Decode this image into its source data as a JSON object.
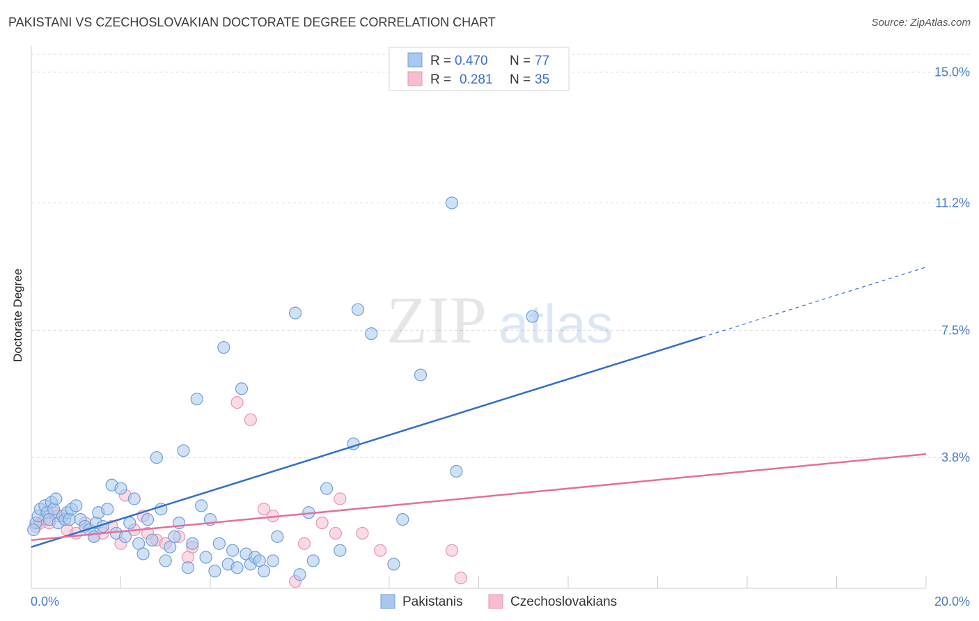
{
  "title": "PAKISTANI VS CZECHOSLOVAKIAN DOCTORATE DEGREE CORRELATION CHART",
  "source": "Source: ZipAtlas.com",
  "watermark": {
    "zip": "ZIP",
    "atlas": "atlas"
  },
  "colors": {
    "blue_fill": "#a9c8ef",
    "blue_stroke": "#6f9fd8",
    "blue_line": "#2f6fcc",
    "pink_fill": "#f6bcd0",
    "pink_stroke": "#e596b3",
    "pink_line": "#e46f9a",
    "tick_text": "#4a7cc8",
    "grid": "#d9d9d9"
  },
  "legend": {
    "rows": [
      {
        "r_label": "R =",
        "r_value": "0.470",
        "n_label": "N =",
        "n_value": "77"
      },
      {
        "r_label": "R =",
        "r_value": "0.281",
        "n_label": "N =",
        "n_value": "35"
      }
    ]
  },
  "chart_data": {
    "type": "scatter",
    "title": "PAKISTANI VS CZECHOSLOVAKIAN DOCTORATE DEGREE CORRELATION CHART",
    "xlabel": "",
    "ylabel": "Doctorate Degree",
    "xlim": [
      0,
      20
    ],
    "ylim": [
      0,
      15.6
    ],
    "x_tick_labels": [
      "0.0%",
      "20.0%"
    ],
    "y_ticks": [
      3.8,
      7.5,
      11.2,
      15.0
    ],
    "y_tick_labels": [
      "3.8%",
      "7.5%",
      "11.2%",
      "15.0%"
    ],
    "grid": "horizontal dashed",
    "legend_position": "top-center",
    "series": [
      {
        "name": "Pakistanis",
        "color": "#a9c8ef",
        "points": [
          [
            0.1,
            1.9
          ],
          [
            0.15,
            2.1
          ],
          [
            0.2,
            2.3
          ],
          [
            0.3,
            2.4
          ],
          [
            0.35,
            2.2
          ],
          [
            0.4,
            2.0
          ],
          [
            0.45,
            2.5
          ],
          [
            0.5,
            2.3
          ],
          [
            0.55,
            2.6
          ],
          [
            0.6,
            1.9
          ],
          [
            0.7,
            2.1
          ],
          [
            0.75,
            2.0
          ],
          [
            0.8,
            2.2
          ],
          [
            0.85,
            2.0
          ],
          [
            0.9,
            2.3
          ],
          [
            1.0,
            2.4
          ],
          [
            1.1,
            2.0
          ],
          [
            1.2,
            1.8
          ],
          [
            1.3,
            1.7
          ],
          [
            1.4,
            1.5
          ],
          [
            1.45,
            1.9
          ],
          [
            1.5,
            2.2
          ],
          [
            1.6,
            1.8
          ],
          [
            1.7,
            2.3
          ],
          [
            1.8,
            3.0
          ],
          [
            1.9,
            1.6
          ],
          [
            2.0,
            2.9
          ],
          [
            2.1,
            1.5
          ],
          [
            2.2,
            1.9
          ],
          [
            2.3,
            2.6
          ],
          [
            2.4,
            1.3
          ],
          [
            2.5,
            1.0
          ],
          [
            2.6,
            2.0
          ],
          [
            2.7,
            1.4
          ],
          [
            2.8,
            3.8
          ],
          [
            2.9,
            2.3
          ],
          [
            3.0,
            0.8
          ],
          [
            3.1,
            1.2
          ],
          [
            3.2,
            1.5
          ],
          [
            3.3,
            1.9
          ],
          [
            3.4,
            4.0
          ],
          [
            3.5,
            0.6
          ],
          [
            3.6,
            1.3
          ],
          [
            3.7,
            5.5
          ],
          [
            3.8,
            2.4
          ],
          [
            3.9,
            0.9
          ],
          [
            4.0,
            2.0
          ],
          [
            4.1,
            0.5
          ],
          [
            4.2,
            1.3
          ],
          [
            4.3,
            7.0
          ],
          [
            4.4,
            0.7
          ],
          [
            4.5,
            1.1
          ],
          [
            4.6,
            0.6
          ],
          [
            4.7,
            5.8
          ],
          [
            4.8,
            1.0
          ],
          [
            4.9,
            0.7
          ],
          [
            5.0,
            0.9
          ],
          [
            5.1,
            0.8
          ],
          [
            5.2,
            0.5
          ],
          [
            5.4,
            0.8
          ],
          [
            5.5,
            1.5
          ],
          [
            5.9,
            8.0
          ],
          [
            6.0,
            0.4
          ],
          [
            6.2,
            2.2
          ],
          [
            6.3,
            0.8
          ],
          [
            6.6,
            2.9
          ],
          [
            6.9,
            1.1
          ],
          [
            7.2,
            4.2
          ],
          [
            7.3,
            8.1
          ],
          [
            7.6,
            7.4
          ],
          [
            8.1,
            0.7
          ],
          [
            8.3,
            2.0
          ],
          [
            8.7,
            6.2
          ],
          [
            9.4,
            11.2
          ],
          [
            9.5,
            3.4
          ],
          [
            11.2,
            7.9
          ],
          [
            0.05,
            1.7
          ]
        ]
      },
      {
        "name": "Czechoslovakians",
        "color": "#f6bcd0",
        "points": [
          [
            0.1,
            1.8
          ],
          [
            0.2,
            1.9
          ],
          [
            0.3,
            2.0
          ],
          [
            0.4,
            1.9
          ],
          [
            0.5,
            2.2
          ],
          [
            0.6,
            2.1
          ],
          [
            0.8,
            1.7
          ],
          [
            1.0,
            1.6
          ],
          [
            1.2,
            1.9
          ],
          [
            1.4,
            1.5
          ],
          [
            1.6,
            1.6
          ],
          [
            1.8,
            1.8
          ],
          [
            2.0,
            1.3
          ],
          [
            2.1,
            2.7
          ],
          [
            2.3,
            1.7
          ],
          [
            2.5,
            2.1
          ],
          [
            2.6,
            1.6
          ],
          [
            2.8,
            1.4
          ],
          [
            3.0,
            1.3
          ],
          [
            3.3,
            1.5
          ],
          [
            3.5,
            0.9
          ],
          [
            3.6,
            1.2
          ],
          [
            4.6,
            5.4
          ],
          [
            4.9,
            4.9
          ],
          [
            5.2,
            2.3
          ],
          [
            5.4,
            2.1
          ],
          [
            5.9,
            0.2
          ],
          [
            6.1,
            1.3
          ],
          [
            6.5,
            1.9
          ],
          [
            6.8,
            1.6
          ],
          [
            6.9,
            2.6
          ],
          [
            7.4,
            1.6
          ],
          [
            7.8,
            1.1
          ],
          [
            9.4,
            1.1
          ],
          [
            9.6,
            0.3
          ]
        ]
      }
    ],
    "trend_lines": [
      {
        "series": "Pakistanis",
        "x": [
          0,
          15
        ],
        "y": [
          1.2,
          7.3
        ],
        "dashed_extension_to_x": 20
      },
      {
        "series": "Czechoslovakians",
        "x": [
          0,
          20
        ],
        "y": [
          1.4,
          3.9
        ]
      }
    ]
  }
}
